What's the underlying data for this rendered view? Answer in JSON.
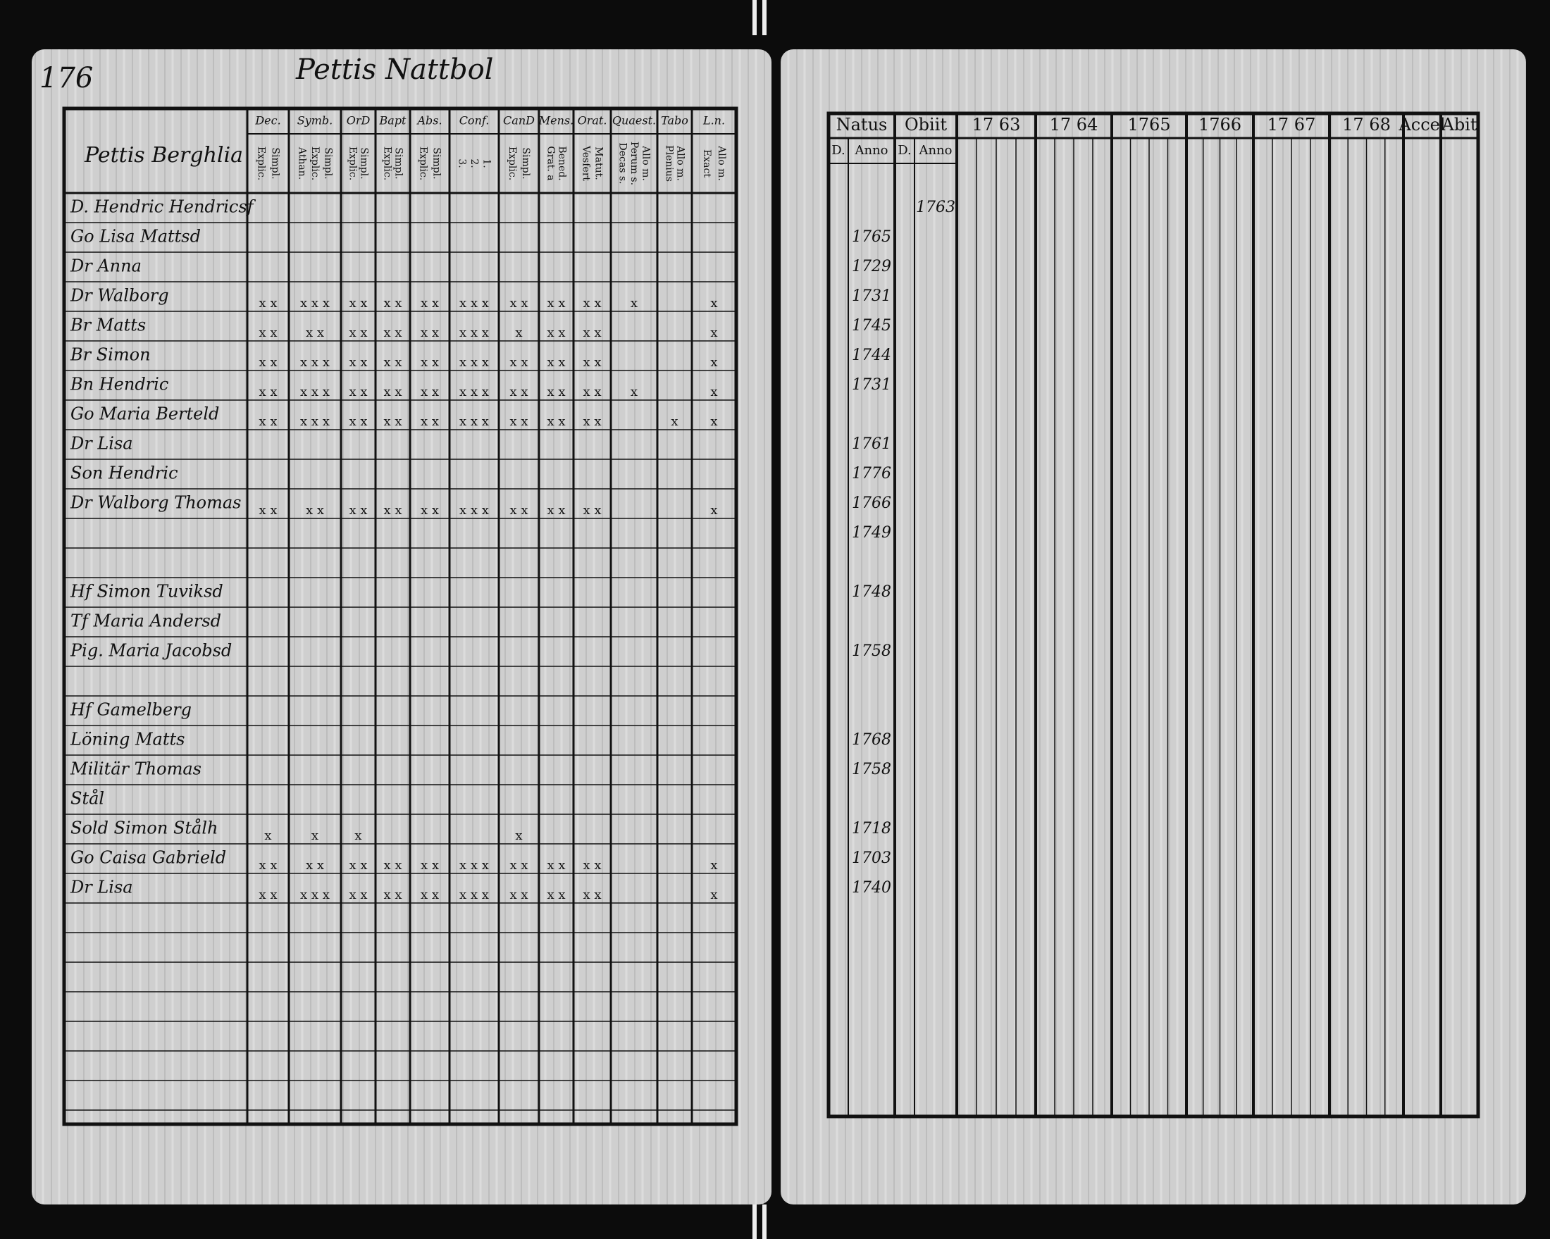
{
  "left_page": {
    "page_number": "176",
    "title": "Pettis Nattbol",
    "household": "Pettis Berghlia",
    "columns": [
      {
        "title": "Dec.",
        "sub": [
          "Explic.",
          "Simpl."
        ]
      },
      {
        "title": "Symb.",
        "sub": [
          "Athan.",
          "Explic.",
          "Simpl."
        ]
      },
      {
        "title": "OrD",
        "sub": [
          "Explic.",
          "Simpl."
        ]
      },
      {
        "title": "Bapt",
        "sub": [
          "Explic.",
          "Simpl."
        ]
      },
      {
        "title": "Abs.",
        "sub": [
          "Explic.",
          "Simpl."
        ]
      },
      {
        "title": "Conf.",
        "sub": [
          "3.",
          "2.",
          "1."
        ]
      },
      {
        "title": "CanD",
        "sub": [
          "Explic.",
          "Simpl."
        ]
      },
      {
        "title": "Mens.",
        "sub": [
          "Grat. a",
          "Bened."
        ]
      },
      {
        "title": "Orat.",
        "sub": [
          "Vesfert",
          "Matut."
        ]
      },
      {
        "title": "Quaest.",
        "sub": [
          "Decas s.",
          "Perum s.",
          "Allo m."
        ]
      },
      {
        "title": "Tabo",
        "sub": [
          "Plenius",
          "Allo m."
        ]
      },
      {
        "title": "L.n.",
        "sub": [
          "Exact",
          "Allo m."
        ]
      }
    ]
  },
  "right_page": {
    "columns": [
      {
        "title": "Natus",
        "sub": [
          "D.",
          "Anno"
        ]
      },
      {
        "title": "Obiit",
        "sub": [
          "D.",
          "Anno"
        ]
      },
      {
        "title": "17 63"
      },
      {
        "title": "17 64"
      },
      {
        "title": "1765"
      },
      {
        "title": "1766"
      },
      {
        "title": "17 67"
      },
      {
        "title": "17 68"
      },
      {
        "title": "Accel"
      },
      {
        "title": "Abit"
      }
    ]
  },
  "rows": [
    {
      "name": "D. Hendric Hendricsf",
      "marks": null,
      "born": null,
      "died": "1763"
    },
    {
      "name": "Go Lisa Mattsd",
      "marks": null,
      "born": "1765",
      "died": null
    },
    {
      "name": "Dr Anna",
      "marks": null,
      "born": "1729",
      "died": null
    },
    {
      "name": "Dr Walborg",
      "marks": [
        "x x",
        "x x x",
        "x x",
        "x x",
        "x x",
        "x x x",
        "x x",
        "x x",
        "x x",
        "x",
        null,
        "x"
      ],
      "born": "1731",
      "died": null
    },
    {
      "name": "Br Matts",
      "marks": [
        "x x",
        "x x",
        "x x",
        "x x",
        "x x",
        "x x x",
        "x",
        "x x",
        "x x",
        null,
        null,
        "x"
      ],
      "born": "1745",
      "died": null
    },
    {
      "name": "Br Simon",
      "marks": [
        "x x",
        "x x x",
        "x x",
        "x x",
        "x x",
        "x x x",
        "x x",
        "x x",
        "x x",
        null,
        null,
        "x"
      ],
      "born": "1744",
      "died": null
    },
    {
      "name": "Bn Hendric",
      "marks": [
        "x x",
        "x x x",
        "x x",
        "x x",
        "x x",
        "x x x",
        "x x",
        "x x",
        "x x",
        "x",
        null,
        "x"
      ],
      "born": "1731",
      "died": null
    },
    {
      "name": "Go Maria Berteld",
      "marks": [
        "x x",
        "x x x",
        "x x",
        "x x",
        "x x",
        "x x x",
        "x x",
        "x x",
        "x x",
        null,
        "x",
        "x"
      ],
      "born": null,
      "died": null
    },
    {
      "name": "Dr Lisa",
      "marks": null,
      "born": "1761",
      "died": null
    },
    {
      "name": "Son Hendric",
      "marks": null,
      "born": "1776",
      "died": null
    },
    {
      "name": "Dr Walborg Thomas",
      "marks": [
        "x x",
        "x x",
        "x x",
        "x x",
        "x x",
        "x x x",
        "x x",
        "x x",
        "x x",
        null,
        null,
        "x"
      ],
      "born": "1766",
      "died": null
    },
    {
      "name": null,
      "marks": null,
      "born": "1749",
      "died": null
    },
    {
      "name": null,
      "marks": null,
      "born": null,
      "died": null
    },
    {
      "name": "Hf Simon Tuviksd",
      "marks": null,
      "born": "1748",
      "died": null
    },
    {
      "name": "Tf Maria Andersd",
      "marks": null,
      "born": null,
      "died": null
    },
    {
      "name": "Pig. Maria Jacobsd",
      "marks": null,
      "born": "1758",
      "died": null
    },
    {
      "name": null,
      "marks": null,
      "born": null,
      "died": null
    },
    {
      "name": "Hf Gamelberg",
      "marks": null,
      "born": null,
      "died": null
    },
    {
      "name": "Löning Matts",
      "marks": null,
      "born": "1768",
      "died": null
    },
    {
      "name": "Militär Thomas",
      "marks": null,
      "born": "1758",
      "died": null
    },
    {
      "name": "Stål",
      "marks": null,
      "born": null,
      "died": null
    },
    {
      "name": "Sold Simon Stålh",
      "marks": [
        "x",
        "x",
        "x",
        null,
        null,
        null,
        "x",
        null,
        null,
        null,
        null,
        null
      ],
      "born": "1718",
      "died": null
    },
    {
      "name": "Go Caisa Gabrield",
      "marks": [
        "x x",
        "x x",
        "x x",
        "x x",
        "x x",
        "x x x",
        "x x",
        "x x",
        "x x",
        null,
        null,
        "x"
      ],
      "born": "1703",
      "died": null
    },
    {
      "name": "Dr Lisa",
      "marks": [
        "x x",
        "x x x",
        "x x",
        "x x",
        "x x",
        "x x x",
        "x x",
        "x x",
        "x x",
        null,
        null,
        "x"
      ],
      "born": "1740",
      "died": null
    }
  ]
}
